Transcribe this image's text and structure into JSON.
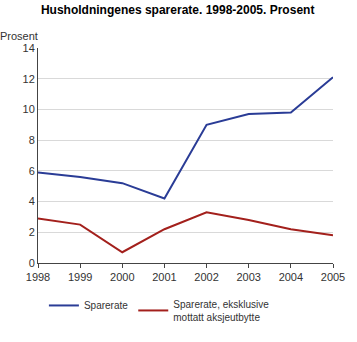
{
  "chart_data": {
    "type": "line",
    "title": "Husholdningenes sparerate. 1998-2005. Prosent",
    "y_label": "Prosent",
    "categories": [
      "1998",
      "1999",
      "2000",
      "2001",
      "2002",
      "2003",
      "2004",
      "2005"
    ],
    "series": [
      {
        "name": "Sparerate",
        "color": "#2a3c96",
        "values": [
          5.9,
          5.6,
          5.2,
          4.2,
          9.0,
          9.7,
          9.8,
          12.1
        ]
      },
      {
        "name": "Sparerate, eksklusive mottatt aksjeutbytte",
        "color": "#a3201c",
        "values": [
          2.9,
          2.5,
          0.7,
          2.2,
          3.3,
          2.8,
          2.2,
          1.8
        ]
      }
    ],
    "ylim": [
      0,
      14
    ],
    "yticks": [
      0,
      2,
      4,
      6,
      8,
      10,
      12,
      14
    ],
    "grid": true,
    "legend": "bottom"
  }
}
